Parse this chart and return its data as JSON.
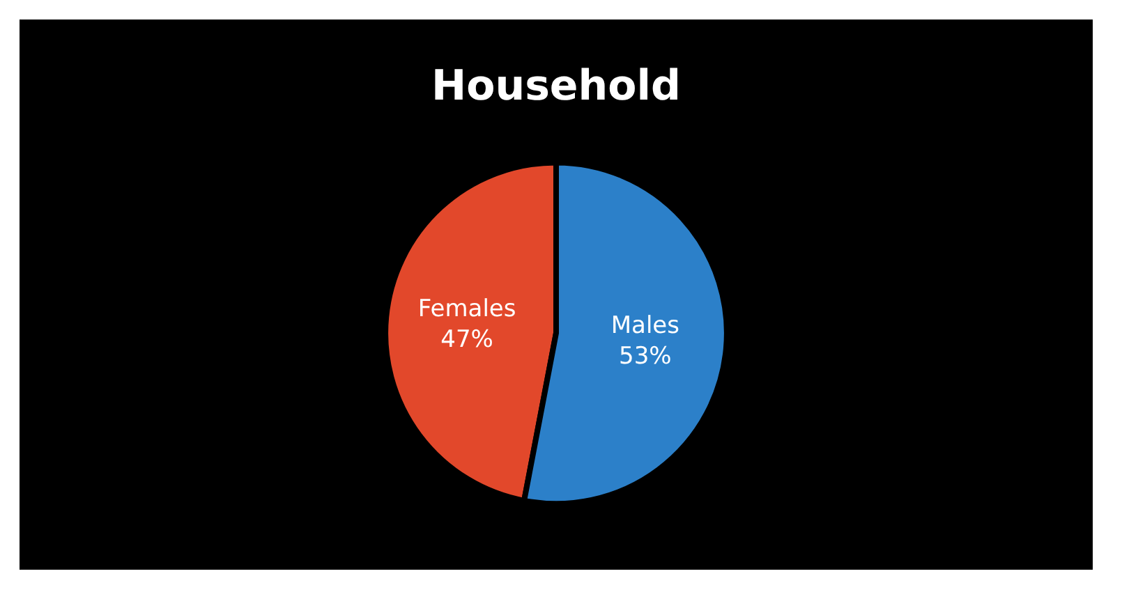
{
  "chart_data": {
    "type": "pie",
    "title": "Household",
    "categories": [
      "Females",
      "Males"
    ],
    "values": [
      47,
      53
    ],
    "colors": [
      "#e2482b",
      "#2c80c9"
    ],
    "value_labels": [
      "47%",
      "53%"
    ]
  }
}
